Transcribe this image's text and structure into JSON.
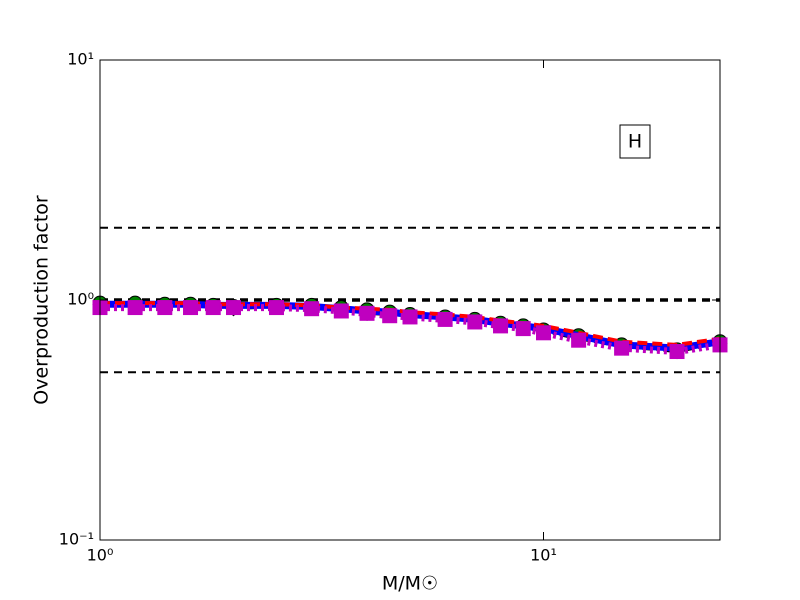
{
  "chart_data": {
    "type": "line",
    "xlabel": "M/M☉",
    "ylabel": "Overproduction factor",
    "annotation": "H",
    "xscale": "log",
    "yscale": "log",
    "xlim": [
      1,
      25
    ],
    "ylim": [
      0.1,
      10
    ],
    "xticks": [
      {
        "value": 1,
        "label": "10⁰"
      },
      {
        "value": 10,
        "label": "10¹"
      }
    ],
    "yticks": [
      {
        "value": 0.1,
        "label": "10⁻¹"
      },
      {
        "value": 1,
        "label": "10⁰"
      },
      {
        "value": 10,
        "label": "10¹"
      }
    ],
    "hlines": [
      2,
      1,
      0.5
    ],
    "x": [
      1,
      1.2,
      1.4,
      1.6,
      1.8,
      2,
      2.5,
      3,
      3.5,
      4,
      4.5,
      5,
      6,
      7,
      8,
      9,
      10,
      12,
      15,
      20,
      25
    ],
    "series": [
      {
        "color": "#000000",
        "linestyle": "dashdot",
        "marker": "D",
        "values": [
          0.96,
          0.96,
          0.95,
          0.95,
          0.94,
          0.92,
          0.94,
          0.94,
          0.92,
          0.88,
          0.87,
          0.86,
          0.84,
          0.82,
          0.79,
          0.77,
          0.74,
          0.69,
          0.64,
          0.61,
          0.66
        ]
      },
      {
        "color": "#008000",
        "linestyle": "dashdot",
        "marker": "o",
        "values": [
          0.97,
          0.97,
          0.96,
          0.96,
          0.95,
          0.94,
          0.95,
          0.95,
          0.93,
          0.91,
          0.89,
          0.87,
          0.85,
          0.83,
          0.8,
          0.78,
          0.75,
          0.71,
          0.65,
          0.62,
          0.67
        ]
      },
      {
        "color": "#0000ff",
        "linestyle": "solid",
        "marker": "none",
        "values": [
          0.96,
          0.96,
          0.96,
          0.96,
          0.95,
          0.95,
          0.95,
          0.94,
          0.92,
          0.9,
          0.89,
          0.87,
          0.85,
          0.83,
          0.8,
          0.78,
          0.76,
          0.71,
          0.65,
          0.63,
          0.67
        ]
      },
      {
        "color": "#ff0000",
        "linestyle": "dashed",
        "marker": "none",
        "values": [
          0.97,
          0.97,
          0.97,
          0.97,
          0.96,
          0.96,
          0.96,
          0.95,
          0.93,
          0.92,
          0.91,
          0.89,
          0.87,
          0.85,
          0.82,
          0.8,
          0.78,
          0.73,
          0.67,
          0.65,
          0.69
        ]
      },
      {
        "color": "#bf00bf",
        "linestyle": "dotted",
        "marker": "s",
        "values": [
          0.93,
          0.93,
          0.93,
          0.93,
          0.93,
          0.93,
          0.93,
          0.92,
          0.9,
          0.88,
          0.86,
          0.85,
          0.83,
          0.81,
          0.78,
          0.76,
          0.73,
          0.68,
          0.63,
          0.61,
          0.65
        ]
      }
    ]
  }
}
